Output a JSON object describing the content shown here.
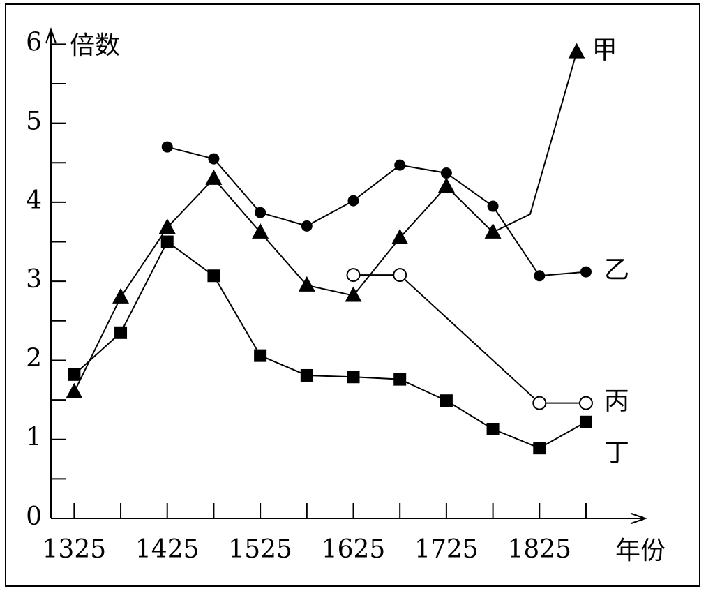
{
  "chart_data": {
    "type": "line",
    "y_label": "倍数",
    "x_label": "年份",
    "xlim": [
      1300,
      1935
    ],
    "ylim": [
      0,
      6.1
    ],
    "xticks": [
      1325,
      1425,
      1525,
      1625,
      1725,
      1825
    ],
    "xminor_ticks": [
      1375,
      1475,
      1575,
      1675,
      1775,
      1875
    ],
    "yticks": [
      0,
      1,
      2,
      3,
      4,
      5,
      6
    ],
    "yminor_ticks": [
      0.5,
      1.5,
      2.5,
      3.5,
      4.5,
      5.5
    ],
    "color": "#000000",
    "series": [
      {
        "name": "甲",
        "marker": "triangle",
        "x": [
          1325,
          1375,
          1425,
          1475,
          1525,
          1575,
          1625,
          1675,
          1725,
          1775,
          1815,
          1865
        ],
        "values": [
          1.6,
          2.8,
          3.68,
          4.3,
          3.62,
          2.95,
          2.82,
          3.55,
          4.2,
          3.62,
          3.85,
          5.9
        ],
        "markers": [
          true,
          true,
          true,
          true,
          true,
          true,
          true,
          true,
          true,
          true,
          false,
          true
        ]
      },
      {
        "name": "乙",
        "marker": "circle",
        "x": [
          1425,
          1475,
          1525,
          1575,
          1625,
          1675,
          1725,
          1775,
          1825,
          1875
        ],
        "values": [
          4.7,
          4.55,
          3.87,
          3.7,
          4.02,
          4.47,
          4.37,
          3.95,
          3.07,
          3.12
        ]
      },
      {
        "name": "丙",
        "marker": "open-circle",
        "x": [
          1625,
          1675,
          1825,
          1875
        ],
        "values": [
          3.08,
          3.08,
          1.46,
          1.46
        ]
      },
      {
        "name": "丁",
        "marker": "square",
        "x": [
          1325,
          1375,
          1425,
          1475,
          1525,
          1575,
          1625,
          1675,
          1725,
          1775,
          1825,
          1875
        ],
        "values": [
          1.82,
          2.35,
          3.5,
          3.07,
          2.06,
          1.81,
          1.79,
          1.76,
          1.49,
          1.13,
          0.89,
          1.22
        ]
      }
    ]
  }
}
